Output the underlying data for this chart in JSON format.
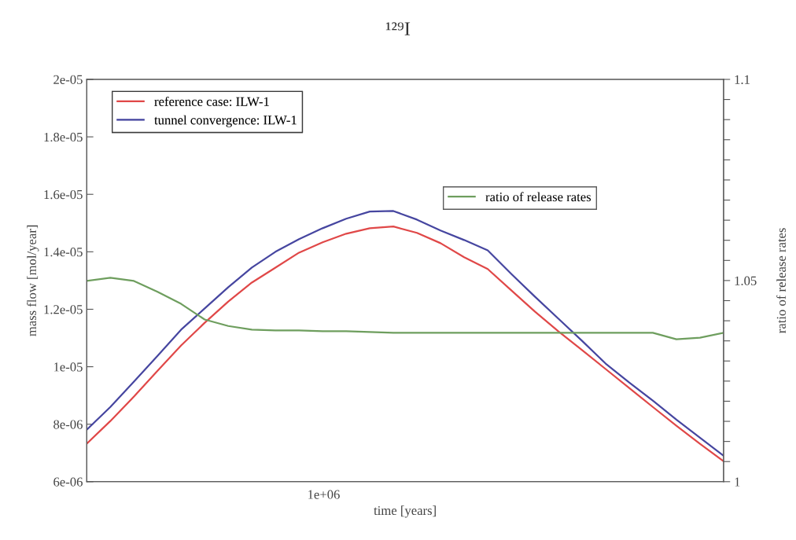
{
  "chart_data": {
    "type": "line",
    "title": "¹²⁹I",
    "xlabel": "time [years]",
    "ylabel": "mass flow [mol/year]",
    "y2label": "ratio of release rates",
    "legend": "top left",
    "grid": false,
    "annotations": [
      "1e+06"
    ],
    "categories": [
      null,
      null,
      null,
      null,
      null,
      null,
      null,
      null,
      null,
      null,
      null,
      null,
      null,
      null,
      null,
      null,
      null,
      null,
      null,
      null,
      null,
      null,
      null,
      null,
      null,
      null,
      null,
      null
    ],
    "ylim": [
      6e-06,
      2e-05
    ],
    "yticks": [
      {
        "value": 6e-06,
        "label": "6e-06"
      },
      {
        "value": 8e-06,
        "label": "8e-06"
      },
      {
        "value": 1e-05,
        "label": "1e-05"
      },
      {
        "value": 1.2e-05,
        "label": "1.2e-05"
      },
      {
        "value": 1.4e-05,
        "label": "1.4e-05"
      },
      {
        "value": 1.6e-05,
        "label": "1.6e-05"
      },
      {
        "value": 1.8e-05,
        "label": "1.8e-05"
      },
      {
        "value": 2e-05,
        "label": "2e-05"
      }
    ],
    "y2lim": [
      1,
      1.1
    ],
    "y2ticks": [
      {
        "value": 1,
        "label": "1"
      },
      {
        "value": 1.005,
        "label": null
      },
      {
        "value": 1.01,
        "label": null
      },
      {
        "value": 1.015,
        "label": null
      },
      {
        "value": 1.02,
        "label": null
      },
      {
        "value": 1.025,
        "label": null
      },
      {
        "value": 1.03,
        "label": null
      },
      {
        "value": 1.035,
        "label": null
      },
      {
        "value": 1.04,
        "label": null
      },
      {
        "value": 1.045,
        "label": null
      },
      {
        "value": 1.05,
        "label": "1.05"
      },
      {
        "value": 1.055,
        "label": null
      },
      {
        "value": 1.06,
        "label": null
      },
      {
        "value": 1.065,
        "label": null
      },
      {
        "value": 1.07,
        "label": null
      },
      {
        "value": 1.075,
        "label": null
      },
      {
        "value": 1.08,
        "label": null
      },
      {
        "value": 1.085,
        "label": null
      },
      {
        "value": 1.09,
        "label": null
      },
      {
        "value": 1.095,
        "label": null
      },
      {
        "value": 1.1,
        "label": "1.1"
      }
    ],
    "series": [
      {
        "name": "reference case: ILW-1",
        "color": "#e04848",
        "values": [
          7.32e-06,
          8.11e-06,
          8.96e-06,
          9.86e-06,
          1.074e-05,
          1.153e-05,
          1.227e-05,
          1.293e-05,
          1.345e-05,
          1.397e-05,
          1.433e-05,
          1.463e-05,
          1.482e-05,
          1.488e-05,
          1.466e-05,
          1.43e-05,
          1.381e-05,
          1.34e-05,
          1.266e-05,
          1.192e-05,
          1.123e-05,
          1.058e-05,
          9.92e-06,
          9.26e-06,
          8.6e-06,
          7.95e-06,
          7.32e-06,
          6.71e-06
        ]
      },
      {
        "name": "tunnel convergence: ILW-1",
        "color": "#4646a0",
        "values": [
          7.81e-06,
          8.6e-06,
          9.48e-06,
          1.038e-05,
          1.129e-05,
          1.203e-05,
          1.277e-05,
          1.345e-05,
          1.4e-05,
          1.444e-05,
          1.482e-05,
          1.515e-05,
          1.54e-05,
          1.542e-05,
          1.512e-05,
          1.474e-05,
          1.441e-05,
          1.405e-05,
          1.323e-05,
          1.244e-05,
          1.167e-05,
          1.09e-05,
          1.011e-05,
          9.45e-06,
          8.82e-06,
          8.16e-06,
          7.53e-06,
          6.9e-06
        ]
      },
      {
        "name": "ratio of release rates",
        "color": "#6e9e5e",
        "axis": "y2",
        "values": [
          1.0499,
          1.0507,
          1.0499,
          1.0472,
          1.0442,
          1.0403,
          1.0387,
          1.0378,
          1.0376,
          1.0376,
          1.0374,
          1.0374,
          1.0372,
          1.037,
          1.037,
          1.037,
          1.037,
          1.037,
          1.037,
          1.037,
          1.037,
          1.037,
          1.037,
          1.037,
          1.037,
          1.0354,
          1.0358,
          1.037
        ]
      }
    ]
  }
}
